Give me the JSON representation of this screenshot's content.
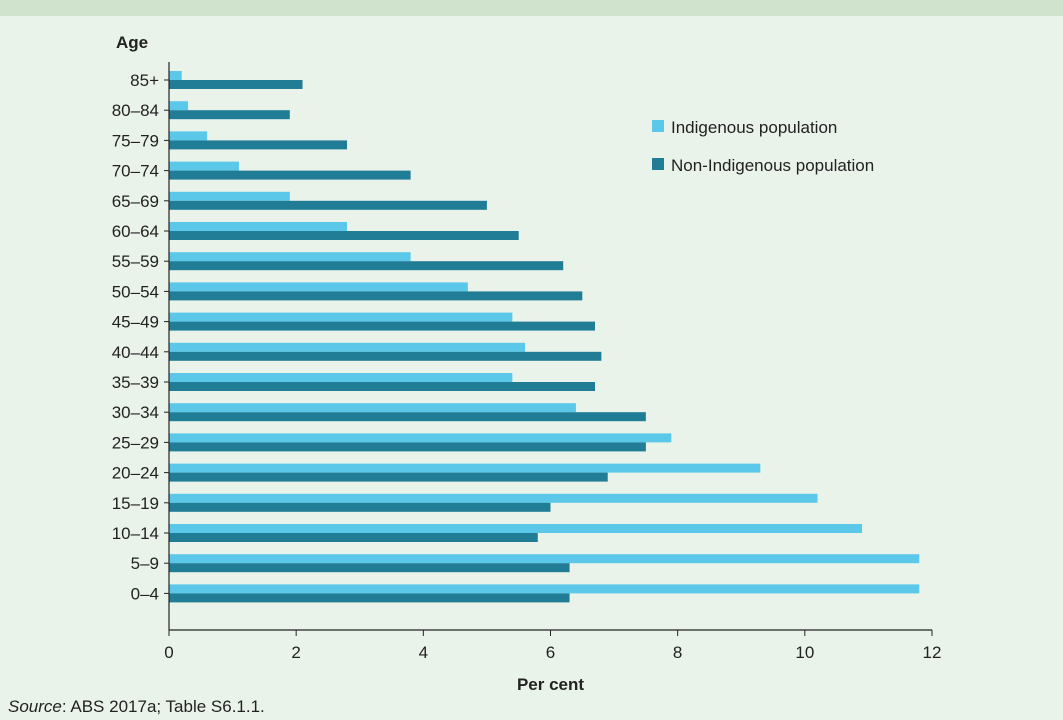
{
  "colors": {
    "background": "#eaf3ea",
    "indigenous": "#5bc8ea",
    "non_indigenous": "#217d96",
    "axis": "#222222"
  },
  "source": {
    "label": "Source",
    "text": ": ABS 2017a; Table S6.1.1."
  },
  "chart_data": {
    "type": "bar",
    "orientation": "horizontal",
    "title": "",
    "ylabel": "Age",
    "xlabel": "Per cent",
    "xlim": [
      0,
      12
    ],
    "xticks": [
      0,
      2,
      4,
      6,
      8,
      10,
      12
    ],
    "grid": false,
    "legend_position": "top-right",
    "categories": [
      "85+",
      "80–84",
      "75–79",
      "70–74",
      "65–69",
      "60–64",
      "55–59",
      "50–54",
      "45–49",
      "40–44",
      "35–39",
      "30–34",
      "25–29",
      "20–24",
      "15–19",
      "10–14",
      "5–9",
      "0–4"
    ],
    "series": [
      {
        "name": "Indigenous population",
        "color": "#5bc8ea",
        "values": [
          0.2,
          0.3,
          0.6,
          1.1,
          1.9,
          2.8,
          3.8,
          4.7,
          5.4,
          5.6,
          5.4,
          6.4,
          7.9,
          9.3,
          10.2,
          10.9,
          11.8,
          11.8
        ]
      },
      {
        "name": "Non-Indigenous population",
        "color": "#217d96",
        "values": [
          2.1,
          1.9,
          2.8,
          3.8,
          5.0,
          5.5,
          6.2,
          6.5,
          6.7,
          6.8,
          6.7,
          7.5,
          7.5,
          6.9,
          6.0,
          5.8,
          6.3,
          6.3
        ]
      }
    ]
  }
}
